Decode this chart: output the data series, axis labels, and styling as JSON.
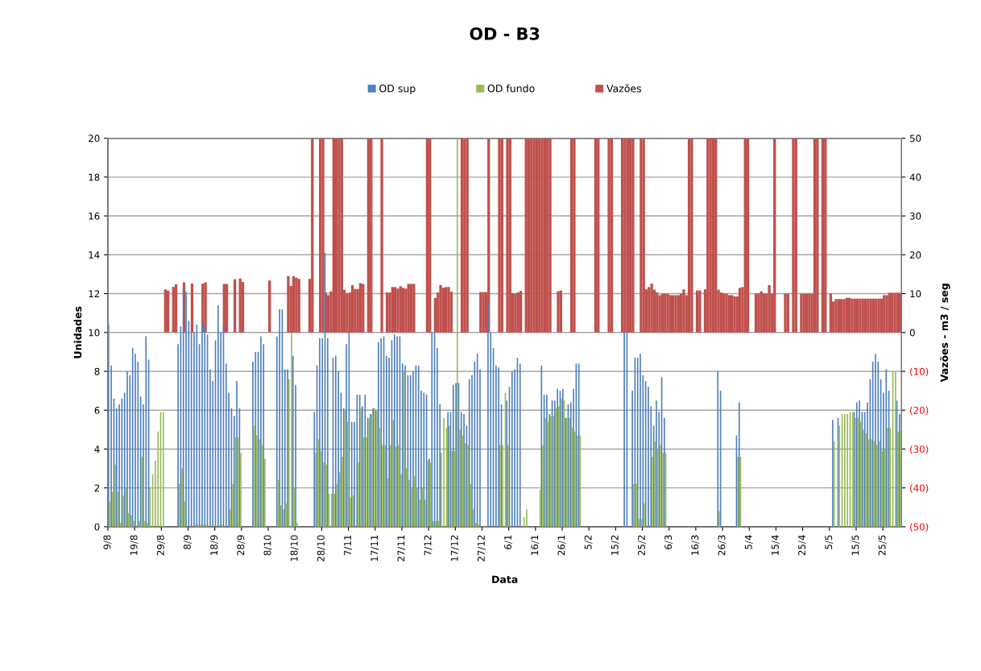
{
  "chart_data": {
    "type": "bar",
    "title": "OD - B3",
    "xlabel": "Data",
    "ylabel": "Unidades",
    "y2label": "Vazões - m3 / seg",
    "categories": [
      "9/8",
      null,
      null,
      null,
      null,
      null,
      null,
      null,
      null,
      null,
      "19/8",
      null,
      null,
      null,
      null,
      null,
      null,
      null,
      null,
      null,
      "29/8",
      null,
      null,
      null,
      null,
      null,
      null,
      null,
      null,
      null,
      "8/9",
      null,
      null,
      null,
      null,
      null,
      null,
      null,
      null,
      null,
      "18/9",
      null,
      null,
      null,
      null,
      null,
      null,
      null,
      null,
      null,
      "28/9",
      null,
      null,
      null,
      null,
      null,
      null,
      null,
      null,
      null,
      "8/10",
      null,
      null,
      null,
      null,
      null,
      null,
      null,
      null,
      null,
      "18/10",
      null,
      null,
      null,
      null,
      null,
      null,
      null,
      null,
      null,
      "28/10",
      null,
      null,
      null,
      null,
      null,
      null,
      null,
      null,
      null,
      "7/11",
      null,
      null,
      null,
      null,
      null,
      null,
      null,
      null,
      null,
      "17/11",
      null,
      null,
      null,
      null,
      null,
      null,
      null,
      null,
      null,
      "27/11",
      null,
      null,
      null,
      null,
      null,
      null,
      null,
      null,
      null,
      "7/12",
      null,
      null,
      null,
      null,
      null,
      null,
      null,
      null,
      null,
      "17/12",
      null,
      null,
      null,
      null,
      null,
      null,
      null,
      null,
      null,
      "27/12",
      null,
      null,
      null,
      null,
      null,
      null,
      null,
      null,
      null,
      "6/1",
      null,
      null,
      null,
      null,
      null,
      null,
      null,
      null,
      null,
      "16/1",
      null,
      null,
      null,
      null,
      null,
      null,
      null,
      null,
      null,
      "26/1",
      null,
      null,
      null,
      null,
      null,
      null,
      null,
      null,
      null,
      "5/2",
      null,
      null,
      null,
      null,
      null,
      null,
      null,
      null,
      null,
      "15/2",
      null,
      null,
      null,
      null,
      null,
      null,
      null,
      null,
      null,
      "25/2",
      null,
      null,
      null,
      null,
      null,
      null,
      null,
      null,
      null,
      "6/3",
      null,
      null,
      null,
      null,
      null,
      null,
      null,
      null,
      null,
      "16/3",
      null,
      null,
      null,
      null,
      null,
      null,
      null,
      null,
      null,
      "26/3",
      null,
      null,
      null,
      null,
      null,
      null,
      null,
      null,
      null,
      "5/4",
      null,
      null,
      null,
      null,
      null,
      null,
      null,
      null,
      null,
      "15/4",
      null,
      null,
      null,
      null,
      null,
      null,
      null,
      null,
      null,
      "25/4",
      null,
      null,
      null,
      null,
      null,
      null,
      null,
      null,
      null,
      "5/5",
      null,
      null,
      null,
      null,
      null,
      null,
      null,
      null,
      null,
      "15/5",
      null,
      null,
      null,
      null,
      null,
      null,
      null,
      null,
      null,
      "25/5",
      null,
      null,
      null,
      null,
      null,
      null
    ],
    "series": [
      {
        "name": "OD sup",
        "color": "#4f81bd",
        "values": [
          10.4,
          8.3,
          6.6,
          6.1,
          6.3,
          6.6,
          6.9,
          8.0,
          7.8,
          9.2,
          8.9,
          8.5,
          6.7,
          6.3,
          9.8,
          8.6,
          null,
          null,
          null,
          null,
          null,
          null,
          null,
          null,
          null,
          null,
          9.4,
          10.3,
          12.3,
          12.1,
          10.6,
          10.0,
          10.0,
          10.4,
          9.4,
          10.4,
          10.4,
          9.9,
          8.1,
          7.5,
          9.6,
          11.4,
          10.0,
          10.4,
          8.4,
          6.9,
          6.1,
          5.7,
          7.5,
          6.1,
          null,
          null,
          null,
          null,
          8.5,
          9.0,
          9.0,
          9.8,
          9.4,
          null,
          null,
          null,
          null,
          9.8,
          11.2,
          11.2,
          8.1,
          8.1,
          null,
          8.8,
          7.3,
          null,
          null,
          null,
          null,
          null,
          null,
          5.9,
          8.3,
          9.7,
          9.7,
          14.1,
          9.7,
          null,
          8.7,
          8.8,
          8.0,
          6.9,
          6.1,
          9.4,
          10.0,
          5.4,
          5.4,
          6.8,
          6.8,
          6.2,
          6.8,
          5.6,
          5.8,
          6.1,
          6.0,
          9.5,
          9.7,
          9.8,
          8.8,
          8.7,
          9.6,
          9.9,
          9.8,
          9.8,
          8.4,
          8.3,
          7.8,
          7.8,
          8.0,
          8.3,
          8.3,
          7.0,
          6.9,
          6.8,
          3.5,
          10.0,
          10.0,
          9.2,
          6.3,
          null,
          null,
          5.9,
          5.9,
          7.3,
          7.4,
          7.4,
          5.9,
          5.8,
          5.2,
          7.6,
          7.8,
          8.5,
          8.9,
          8.1,
          null,
          null,
          11.6,
          10.0,
          9.2,
          8.3,
          8.2,
          6.3,
          null,
          6.5,
          7.2,
          8.0,
          8.1,
          8.7,
          8.4,
          null,
          null,
          null,
          null,
          null,
          null,
          null,
          8.3,
          6.8,
          6.8,
          5.8,
          6.5,
          6.5,
          7.1,
          7.0,
          7.1,
          5.6,
          6.3,
          6.4,
          7.1,
          8.4,
          8.4,
          null,
          null,
          null,
          null,
          null,
          null,
          null,
          null,
          null,
          null,
          null,
          null,
          null,
          null,
          null,
          null,
          10.0,
          10.0,
          null,
          7.0,
          8.7,
          8.7,
          8.9,
          7.8,
          7.5,
          7.2,
          6.2,
          5.2,
          6.5,
          5.9,
          7.7,
          5.6,
          null,
          null,
          null,
          null,
          null,
          null,
          null,
          null,
          null,
          null,
          null,
          null,
          null,
          null,
          null,
          null,
          null,
          null,
          null,
          8.0,
          7.0,
          null,
          null,
          null,
          null,
          null,
          4.7,
          6.4,
          null,
          null,
          null,
          null,
          null,
          null,
          null,
          null,
          null,
          null,
          null,
          null,
          null,
          null,
          null,
          null,
          null,
          null,
          null,
          null,
          null,
          null,
          null,
          null,
          null,
          null,
          null,
          null,
          null,
          null,
          null,
          null,
          null,
          null,
          5.5,
          null,
          5.6,
          null,
          null,
          null,
          null,
          null,
          5.9,
          6.4,
          6.5,
          5.9,
          5.9,
          6.4,
          7.6,
          8.5,
          8.9,
          8.5,
          7.6,
          6.9,
          8.1,
          7.0,
          null,
          null,
          6.5,
          5.8
        ]
      },
      {
        "name": "OD fundo",
        "color": "#9bbb59",
        "values": [
          1.3,
          1.8,
          3.2,
          1.8,
          0.2,
          1.6,
          2.0,
          0.7,
          0.6,
          0.3,
          null,
          0.3,
          3.6,
          0.3,
          0.2,
          2.0,
          2.7,
          3.4,
          4.9,
          5.9,
          5.9,
          null,
          null,
          null,
          null,
          null,
          2.2,
          3.0,
          1.3,
          null,
          null,
          null,
          0.1,
          0.1,
          0.1,
          0.1,
          0.1,
          null,
          null,
          null,
          null,
          null,
          0.1,
          null,
          null,
          0.9,
          2.2,
          4.6,
          4.6,
          3.8,
          null,
          null,
          null,
          null,
          5.2,
          4.7,
          4.5,
          4.2,
          3.5,
          null,
          null,
          null,
          null,
          2.4,
          1.1,
          0.9,
          1.2,
          7.6,
          10.0,
          2.0,
          0.2,
          null,
          null,
          null,
          null,
          null,
          null,
          3.8,
          4.5,
          3.9,
          3.3,
          3.2,
          1.7,
          1.7,
          1.7,
          2.2,
          2.8,
          3.6,
          6.0,
          5.4,
          1.5,
          1.6,
          null,
          3.3,
          6.1,
          4.6,
          4.6,
          5.6,
          5.8,
          6.1,
          6.0,
          5.1,
          4.2,
          4.2,
          2.5,
          4.2,
          5.5,
          4.1,
          4.2,
          2.7,
          8.0,
          3.0,
          2.4,
          2.0,
          2.6,
          2.0,
          1.4,
          2.0,
          1.4,
          3.4,
          3.3,
          0.3,
          0.3,
          0.3,
          3.8,
          5.6,
          5.1,
          5.2,
          3.9,
          3.9,
          20,
          5.0,
          4.7,
          4.3,
          4.2,
          2.2,
          0.9,
          0.2,
          0.1,
          null,
          null,
          null,
          null,
          null,
          null,
          null,
          4.2,
          4.2,
          6.9,
          4.2,
          null,
          null,
          null,
          null,
          null,
          0.5,
          0.9,
          null,
          null,
          null,
          null,
          1.9,
          4.2,
          5.6,
          5.4,
          5.7,
          5.7,
          6.1,
          6.2,
          6.6,
          6.5,
          5.6,
          5.6,
          5.1,
          4.9,
          4.7,
          4.7,
          null,
          null,
          null,
          null,
          null,
          null,
          null,
          null,
          null,
          null,
          null,
          null,
          null,
          null,
          null,
          null,
          null,
          null,
          null,
          2.2,
          2.2,
          0.4,
          0.4,
          1.2,
          null,
          null,
          3.6,
          4.4,
          4.0,
          4.2,
          3.8,
          3.8,
          null,
          null,
          null,
          null,
          null,
          null,
          null,
          null,
          null,
          null,
          null,
          null,
          null,
          null,
          null,
          null,
          null,
          null,
          null,
          0.8,
          null,
          null,
          null,
          null,
          null,
          null,
          3.6,
          3.6,
          null,
          null,
          null,
          null,
          null,
          null,
          null,
          null,
          null,
          null,
          null,
          null,
          null,
          null,
          null,
          null,
          null,
          null,
          null,
          null,
          null,
          null,
          null,
          null,
          null,
          null,
          null,
          null,
          null,
          null,
          null,
          null,
          null,
          null,
          4.4,
          null,
          5.2,
          5.8,
          5.8,
          5.8,
          5.9,
          5.9,
          5.6,
          5.6,
          5.4,
          5.0,
          4.8,
          4.5,
          4.5,
          4.4,
          4.2,
          4.4,
          3.9,
          4.0,
          5.1,
          5.1,
          8.0,
          8.0,
          4.9,
          4.9
        ]
      },
      {
        "name": "Vazões",
        "color": "#c0504d",
        "axis": "y2",
        "values": [
          null,
          null,
          null,
          null,
          null,
          null,
          null,
          null,
          null,
          null,
          null,
          null,
          null,
          null,
          null,
          null,
          null,
          null,
          null,
          null,
          null,
          11.1,
          10.8,
          null,
          11.7,
          12.4,
          null,
          null,
          12.9,
          null,
          null,
          12.6,
          null,
          null,
          null,
          12.6,
          12.9,
          null,
          null,
          null,
          null,
          null,
          null,
          12.5,
          12.5,
          null,
          null,
          13.7,
          null,
          13.9,
          13.0,
          null,
          null,
          null,
          null,
          null,
          null,
          null,
          null,
          null,
          13.4,
          null,
          null,
          null,
          null,
          null,
          null,
          14.5,
          12.0,
          14.5,
          14.1,
          13.8,
          null,
          null,
          null,
          13.8,
          50,
          null,
          null,
          50,
          50,
          10.3,
          9.6,
          10.6,
          50,
          50,
          50,
          50,
          11.0,
          10.1,
          10.3,
          12.2,
          11.2,
          11.2,
          12.7,
          12.5,
          null,
          50,
          50,
          null,
          null,
          null,
          50,
          null,
          10.3,
          10.3,
          11.7,
          11.7,
          11.3,
          11.9,
          11.5,
          11.3,
          12.5,
          12.5,
          12.5,
          null,
          null,
          null,
          null,
          50,
          50,
          null,
          8.9,
          10.3,
          12.2,
          11.5,
          11.7,
          11.7,
          10.5,
          null,
          null,
          null,
          50,
          50,
          50,
          null,
          null,
          null,
          null,
          10.4,
          10.4,
          10.4,
          50,
          null,
          null,
          null,
          50,
          50,
          null,
          50,
          50,
          10.1,
          10.0,
          10.3,
          10.7,
          null,
          50,
          50,
          50,
          50,
          50,
          50,
          50,
          50,
          50,
          50,
          null,
          null,
          10.6,
          10.8,
          null,
          null,
          null,
          50,
          50,
          null,
          null,
          null,
          null,
          null,
          null,
          null,
          50,
          50,
          null,
          null,
          null,
          50,
          50,
          null,
          null,
          null,
          50,
          50,
          50,
          50,
          50,
          null,
          null,
          50,
          50,
          11.1,
          11.7,
          12.6,
          11.0,
          10.3,
          9.6,
          10.0,
          10.0,
          10.0,
          9.6,
          9.6,
          9.6,
          9.6,
          10.0,
          11.1,
          9.6,
          50,
          50,
          null,
          10.8,
          10.8,
          null,
          11.1,
          50,
          50,
          50,
          50,
          11.0,
          10.3,
          10.0,
          10.0,
          9.6,
          9.6,
          9.3,
          9.3,
          11.5,
          11.7,
          50,
          50,
          null,
          null,
          10.0,
          10.0,
          10.6,
          10.0,
          10.0,
          12.2,
          10.0,
          50,
          null,
          null,
          null,
          10.0,
          10.0,
          null,
          50,
          50,
          null,
          10.0,
          10.0,
          10.0,
          10.0,
          10.0,
          50,
          50,
          null,
          50,
          50,
          null,
          10.0,
          8.0,
          8.6,
          8.6,
          8.6,
          8.6,
          8.9,
          8.9,
          8.7,
          8.7,
          8.7,
          8.7,
          8.7,
          8.7,
          8.7,
          8.7,
          8.7,
          8.7,
          8.7,
          8.7,
          9.6,
          9.6,
          10.2,
          10.2,
          10.2,
          10.2,
          10.2
        ]
      }
    ],
    "ylim": [
      0,
      20
    ],
    "yticks": [
      0,
      2,
      4,
      6,
      8,
      10,
      12,
      14,
      16,
      18,
      20
    ],
    "y2lim": [
      -50,
      50
    ],
    "y2ticks": [
      {
        "value": -50,
        "label": "(50)"
      },
      {
        "value": -40,
        "label": "(40)"
      },
      {
        "value": -30,
        "label": "(30)"
      },
      {
        "value": -20,
        "label": "(20)"
      },
      {
        "value": -10,
        "label": "(10)"
      },
      0,
      10,
      20,
      30,
      40,
      50
    ],
    "grid": true,
    "legend": "top"
  }
}
